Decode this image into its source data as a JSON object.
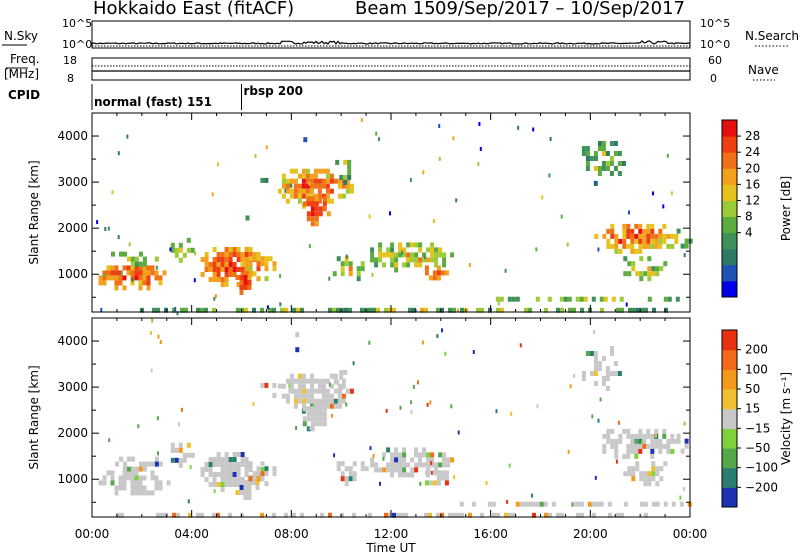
{
  "header": {
    "station": "Hokkaido East (fitACF)",
    "beam": "Beam 15",
    "dates": "09/Sep/2017 – 10/Sep/2017"
  },
  "noise_panel": {
    "left_label": "N.Sky",
    "right_label": "N.Search",
    "left_ticks": [
      "10^5",
      "10^0"
    ],
    "right_ticks": [
      "10^5",
      "10^0"
    ]
  },
  "freq_panel": {
    "left_label_1": "Freq.",
    "left_label_2": "[MHz]",
    "left_ticks": [
      "18",
      "8"
    ],
    "right_label": "Nave",
    "right_ticks": [
      "60",
      "0"
    ]
  },
  "cpid_panel": {
    "label": "CPID",
    "modes": [
      {
        "name": "normal (fast) 151",
        "start_hour": 0
      },
      {
        "name": "rbsp 200",
        "start_hour": 6
      }
    ]
  },
  "chart_data": [
    {
      "type": "heatmap",
      "quantity": "power",
      "ylabel": "Slant Range [km]",
      "yticks": [
        1000,
        2000,
        3000,
        4000
      ],
      "ylim": [
        180,
        4500
      ],
      "xlim": [
        0,
        24
      ],
      "colorbar": {
        "label": "Power [dB]",
        "ticks": [
          "28",
          "24",
          "20",
          "16",
          "12",
          "8",
          "4"
        ],
        "colors": [
          "#0000e8",
          "#1e52b4",
          "#2f7a66",
          "#3f915a",
          "#5bab3f",
          "#9ccb38",
          "#e6c21c",
          "#f2a11c",
          "#f07018",
          "#ee3f12",
          "#e8100e"
        ]
      }
    },
    {
      "type": "heatmap",
      "quantity": "velocity",
      "ylabel": "Slant Range [km]",
      "yticks": [
        1000,
        2000,
        3000,
        4000
      ],
      "ylim": [
        180,
        4500
      ],
      "xlim": [
        0,
        24
      ],
      "xlabel": "Time UT",
      "xticks": [
        "00:00",
        "04:00",
        "08:00",
        "12:00",
        "16:00",
        "20:00",
        "00:00"
      ],
      "colorbar": {
        "label": "Velocity [m s⁻¹]",
        "ticks": [
          "200",
          "100",
          "50",
          "15",
          "−15",
          "−50",
          "−100",
          "−200"
        ],
        "colors": [
          "#1c32b0",
          "#2a7e70",
          "#55a84a",
          "#7ed13a",
          "#c8c8c8",
          "#f0c030",
          "#f29a1c",
          "#f06a18",
          "#e83012"
        ]
      }
    }
  ]
}
